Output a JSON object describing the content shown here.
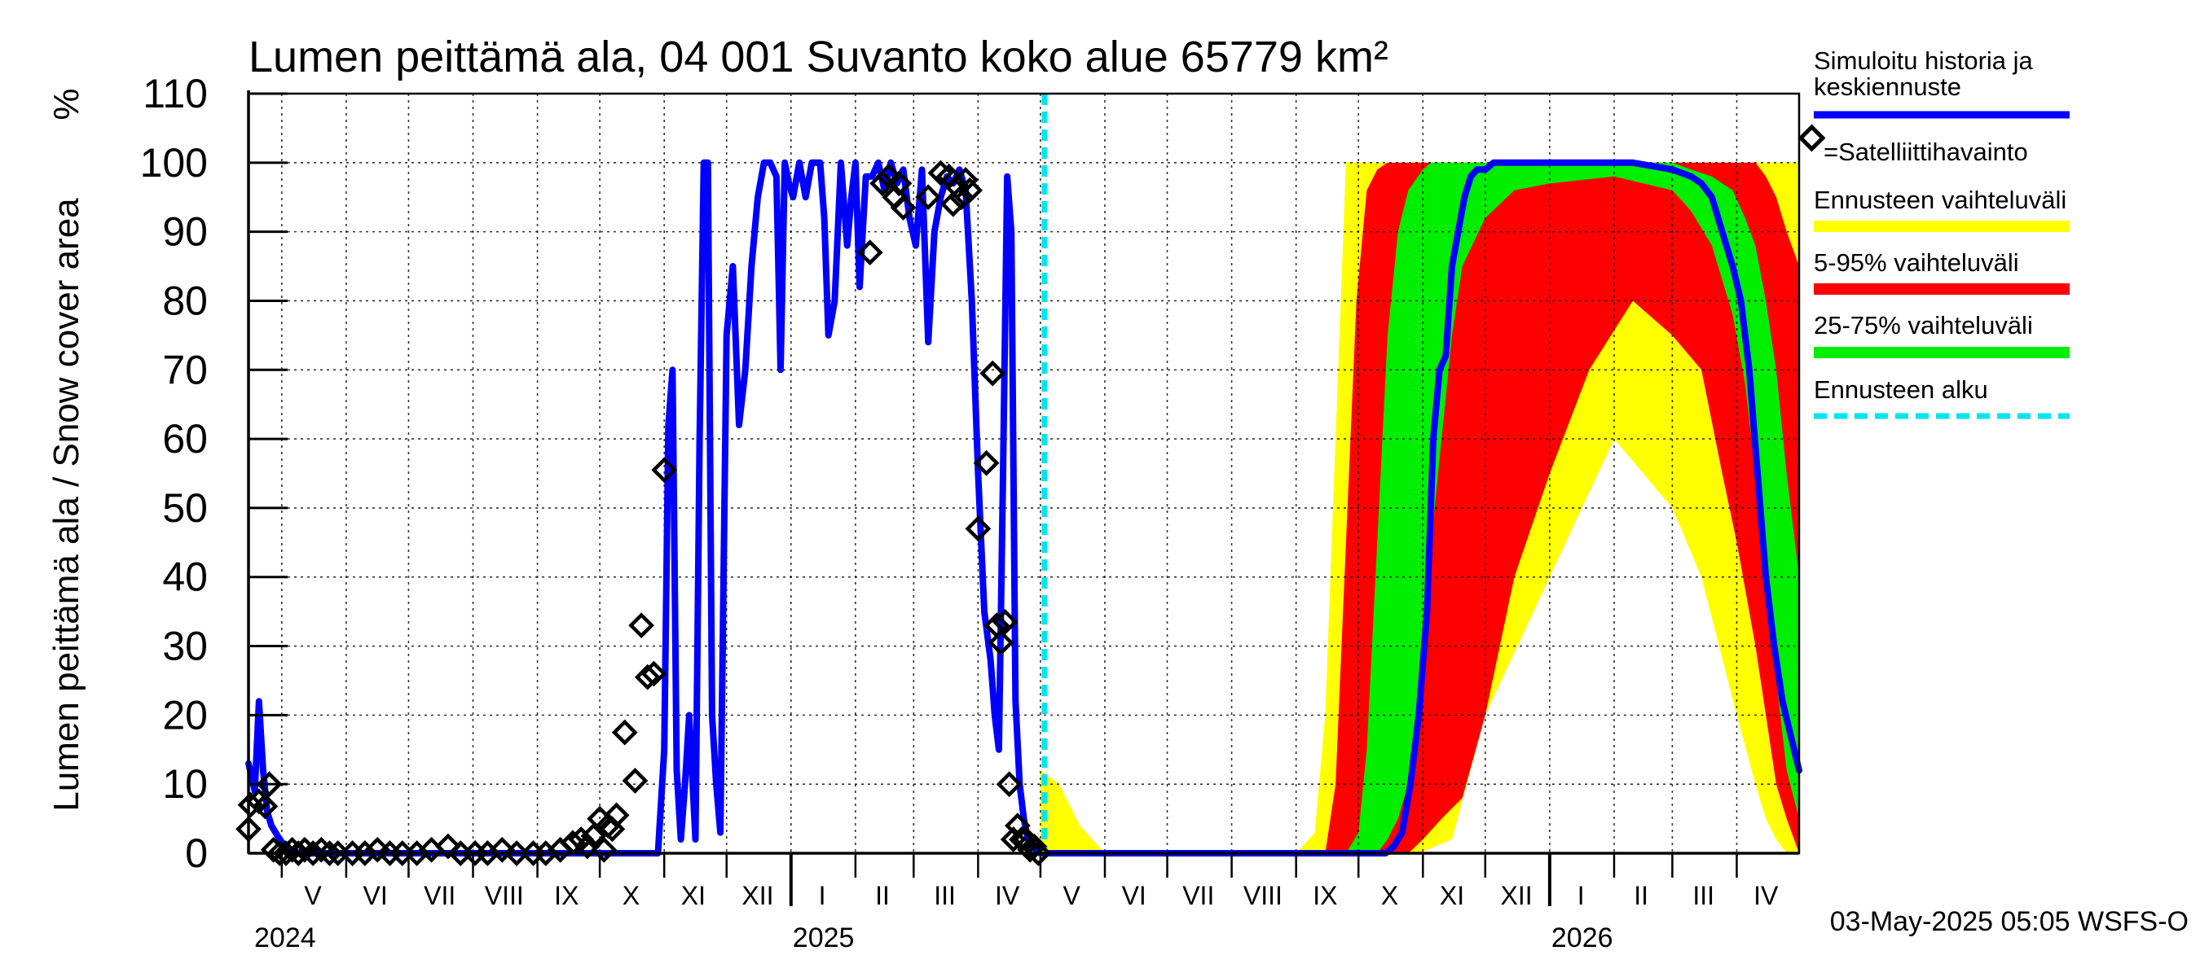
{
  "chart_data": {
    "type": "area",
    "title": "Lumen peittämä ala, 04 001 Suvanto koko alue 65779 km²",
    "ylabel": "Lumen peittämä ala / Snow cover area",
    "yunit": "%",
    "ylim": [
      0,
      110
    ],
    "yticks": [
      0,
      10,
      20,
      30,
      40,
      50,
      60,
      70,
      80,
      90,
      100,
      110
    ],
    "xlim": [
      "2024-04-15",
      "2026-05-01"
    ],
    "grid": true,
    "month_labels": [
      {
        "label": "V",
        "date": "2024-05-16"
      },
      {
        "label": "VI",
        "date": "2024-06-15"
      },
      {
        "label": "VII",
        "date": "2024-07-16"
      },
      {
        "label": "VIII",
        "date": "2024-08-16"
      },
      {
        "label": "IX",
        "date": "2024-09-15"
      },
      {
        "label": "X",
        "date": "2024-10-16"
      },
      {
        "label": "XI",
        "date": "2024-11-15"
      },
      {
        "label": "XII",
        "date": "2024-12-16"
      },
      {
        "label": "I",
        "date": "2025-01-16"
      },
      {
        "label": "II",
        "date": "2025-02-14"
      },
      {
        "label": "III",
        "date": "2025-03-16"
      },
      {
        "label": "IV",
        "date": "2025-04-15"
      },
      {
        "label": "V",
        "date": "2025-05-16"
      },
      {
        "label": "VI",
        "date": "2025-06-15"
      },
      {
        "label": "VII",
        "date": "2025-07-16"
      },
      {
        "label": "VIII",
        "date": "2025-08-16"
      },
      {
        "label": "IX",
        "date": "2025-09-15"
      },
      {
        "label": "X",
        "date": "2025-10-16"
      },
      {
        "label": "XI",
        "date": "2025-11-15"
      },
      {
        "label": "XII",
        "date": "2025-12-16"
      },
      {
        "label": "I",
        "date": "2026-01-16"
      },
      {
        "label": "II",
        "date": "2026-02-14"
      },
      {
        "label": "III",
        "date": "2026-03-16"
      },
      {
        "label": "IV",
        "date": "2026-04-15"
      }
    ],
    "year_labels": [
      {
        "label": "2024",
        "date": "2024-04-15"
      },
      {
        "label": "2025",
        "date": "2025-01-01"
      },
      {
        "label": "2026",
        "date": "2026-01-01"
      }
    ],
    "forecast_start": "2025-05-03",
    "legend": {
      "placement": "right",
      "entries": [
        {
          "label": "Simuloitu historia ja keskiennuste",
          "lines": [
            "Simuloitu historia ja",
            "keskiennuste"
          ],
          "color": "#0000ff",
          "style": "line"
        },
        {
          "label": "=Satelliittihavainto",
          "color": "#000000",
          "style": "diamond"
        },
        {
          "label": "Ennusteen vaihteluväli",
          "color": "#ffff00",
          "style": "band"
        },
        {
          "label": "5-95% vaihteluväli",
          "color": "#ff0000",
          "style": "band"
        },
        {
          "label": "25-75% vaihteluväli",
          "color": "#00ee00",
          "style": "band"
        },
        {
          "label": "Ennusteen alku",
          "color": "#00e5ee",
          "style": "dashed"
        }
      ]
    },
    "footer": "03-May-2025 05:05 WSFS-O",
    "series": [
      {
        "name": "Simuloitu historia ja keskiennuste",
        "color": "#0000ff",
        "x": [
          "2024-04-15",
          "2024-04-18",
          "2024-04-20",
          "2024-04-22",
          "2024-04-24",
          "2024-04-26",
          "2024-04-30",
          "2024-05-04",
          "2024-05-10",
          "2024-05-20",
          "2024-06-15",
          "2024-07-15",
          "2024-08-15",
          "2024-09-15",
          "2024-10-10",
          "2024-10-25",
          "2024-10-29",
          "2024-11-01",
          "2024-11-03",
          "2024-11-05",
          "2024-11-07",
          "2024-11-09",
          "2024-11-11",
          "2024-11-13",
          "2024-11-16",
          "2024-11-18",
          "2024-11-20",
          "2024-11-22",
          "2024-11-24",
          "2024-11-26",
          "2024-11-28",
          "2024-12-01",
          "2024-12-04",
          "2024-12-07",
          "2024-12-10",
          "2024-12-13",
          "2024-12-16",
          "2024-12-19",
          "2024-12-22",
          "2024-12-25",
          "2024-12-27",
          "2024-12-29",
          "2024-12-31",
          "2025-01-02",
          "2025-01-05",
          "2025-01-08",
          "2025-01-11",
          "2025-01-13",
          "2025-01-15",
          "2025-01-17",
          "2025-01-19",
          "2025-01-22",
          "2025-01-25",
          "2025-01-28",
          "2025-01-30",
          "2025-02-01",
          "2025-02-03",
          "2025-02-06",
          "2025-02-09",
          "2025-02-12",
          "2025-02-15",
          "2025-02-18",
          "2025-02-21",
          "2025-02-24",
          "2025-02-27",
          "2025-03-02",
          "2025-03-05",
          "2025-03-08",
          "2025-03-11",
          "2025-03-14",
          "2025-03-17",
          "2025-03-20",
          "2025-03-23",
          "2025-03-26",
          "2025-03-29",
          "2025-04-01",
          "2025-04-04",
          "2025-04-07",
          "2025-04-09",
          "2025-04-11",
          "2025-04-13",
          "2025-04-15",
          "2025-04-17",
          "2025-04-19",
          "2025-04-21",
          "2025-04-23",
          "2025-04-25",
          "2025-04-27",
          "2025-04-29",
          "2025-05-01",
          "2025-05-03",
          "2025-06-01",
          "2025-09-01",
          "2025-10-01",
          "2025-10-10",
          "2025-10-14",
          "2025-10-18",
          "2025-10-22",
          "2025-10-26",
          "2025-10-30",
          "2025-11-03",
          "2025-11-06",
          "2025-11-09",
          "2025-11-12",
          "2025-11-15",
          "2025-11-18",
          "2025-11-21",
          "2025-11-24",
          "2025-11-27",
          "2025-12-01",
          "2025-12-05",
          "2025-12-10",
          "2025-12-15",
          "2025-12-20",
          "2026-01-01",
          "2026-01-20",
          "2026-02-10",
          "2026-03-01",
          "2026-03-10",
          "2026-03-15",
          "2026-03-20",
          "2026-03-25",
          "2026-03-30",
          "2026-04-03",
          "2026-04-07",
          "2026-04-11",
          "2026-04-15",
          "2026-04-19",
          "2026-04-23",
          "2026-04-27",
          "2026-05-01"
        ],
        "y": [
          13,
          9,
          22,
          12,
          6,
          4,
          2,
          0.5,
          0,
          0,
          0,
          0,
          0,
          0,
          0,
          0,
          0,
          15,
          62,
          70,
          12,
          2,
          10,
          20,
          2,
          60,
          100,
          100,
          20,
          10,
          3,
          75,
          85,
          62,
          70,
          85,
          95,
          100,
          100,
          98,
          70,
          100,
          97,
          95,
          100,
          95,
          100,
          100,
          100,
          92,
          75,
          80,
          100,
          88,
          95,
          100,
          82,
          98,
          98,
          100,
          96,
          100,
          97,
          99,
          92,
          88,
          99,
          74,
          90,
          95,
          98,
          97,
          99,
          96,
          80,
          55,
          35,
          28,
          20,
          15,
          55,
          98,
          90,
          22,
          10,
          5,
          2,
          1,
          0.5,
          0,
          0,
          0,
          0,
          0,
          0,
          0,
          1,
          3,
          10,
          20,
          35,
          60,
          70,
          72,
          85,
          90,
          95,
          98,
          99,
          99,
          100,
          100,
          100,
          100,
          100,
          100,
          100,
          99,
          98,
          97,
          95,
          90,
          85,
          80,
          70,
          55,
          40,
          30,
          22,
          17,
          12
        ]
      }
    ],
    "bands": [
      {
        "name": "Ennusteen vaihteluväli",
        "color": "#ffff00",
        "x": [
          "2025-05-01",
          "2025-05-10",
          "2025-05-20",
          "2025-06-01",
          "2025-09-01",
          "2025-09-10",
          "2025-09-15",
          "2025-09-20",
          "2025-09-25",
          "2025-10-01",
          "2025-10-05",
          "2025-10-10",
          "2025-10-15",
          "2025-10-20",
          "2025-10-30",
          "2025-11-15",
          "2025-12-01",
          "2026-01-01",
          "2026-02-01",
          "2026-03-01",
          "2026-03-15",
          "2026-04-01",
          "2026-04-10",
          "2026-04-15",
          "2026-04-20",
          "2026-04-25",
          "2026-05-01"
        ],
        "upper": [
          12,
          10,
          4,
          0,
          0,
          3,
          20,
          60,
          100,
          100,
          100,
          100,
          100,
          100,
          100,
          100,
          100,
          100,
          100,
          100,
          100,
          100,
          100,
          100,
          100,
          100,
          100
        ],
        "lower": [
          0,
          0,
          0,
          0,
          0,
          0,
          0,
          0,
          0,
          0,
          0,
          0,
          0,
          0,
          0,
          2,
          20,
          40,
          60,
          50,
          40,
          20,
          10,
          5,
          2,
          0,
          0
        ]
      },
      {
        "name": "5-95% vaihteluväli",
        "color": "#ff0000",
        "x": [
          "2025-09-15",
          "2025-09-20",
          "2025-09-25",
          "2025-09-30",
          "2025-10-05",
          "2025-10-10",
          "2025-10-15",
          "2025-10-20",
          "2025-10-25",
          "2025-11-01",
          "2025-11-10",
          "2025-11-20",
          "2025-12-01",
          "2025-12-15",
          "2026-01-01",
          "2026-01-20",
          "2026-02-10",
          "2026-03-01",
          "2026-03-15",
          "2026-03-25",
          "2026-04-01",
          "2026-04-10",
          "2026-04-15",
          "2026-04-20",
          "2026-04-25",
          "2026-05-01"
        ],
        "upper": [
          0,
          10,
          45,
          80,
          96,
          99,
          100,
          100,
          100,
          100,
          100,
          100,
          100,
          100,
          100,
          100,
          100,
          100,
          100,
          100,
          100,
          100,
          98,
          95,
          90,
          85
        ],
        "lower": [
          0,
          0,
          0,
          0,
          0,
          0,
          0,
          0,
          0,
          2,
          5,
          8,
          20,
          40,
          55,
          70,
          80,
          75,
          70,
          55,
          45,
          30,
          20,
          10,
          5,
          0
        ]
      },
      {
        "name": "25-75% vaihteluväli",
        "color": "#00ee00",
        "x": [
          "2025-09-25",
          "2025-10-01",
          "2025-10-05",
          "2025-10-10",
          "2025-10-15",
          "2025-10-20",
          "2025-10-25",
          "2025-11-01",
          "2025-11-05",
          "2025-11-10",
          "2025-11-15",
          "2025-11-20",
          "2025-12-01",
          "2025-12-15",
          "2026-01-01",
          "2026-02-01",
          "2026-03-01",
          "2026-03-10",
          "2026-03-20",
          "2026-03-30",
          "2026-04-05",
          "2026-04-10",
          "2026-04-15",
          "2026-04-20",
          "2026-04-25",
          "2026-05-01"
        ],
        "upper": [
          0,
          3,
          15,
          45,
          75,
          90,
          96,
          99,
          100,
          100,
          100,
          100,
          100,
          100,
          100,
          100,
          100,
          99,
          98,
          96,
          92,
          88,
          80,
          70,
          55,
          40
        ],
        "lower": [
          0,
          0,
          0,
          0,
          2,
          5,
          10,
          25,
          45,
          60,
          75,
          85,
          92,
          96,
          97,
          98,
          96,
          93,
          88,
          78,
          68,
          55,
          40,
          25,
          12,
          5
        ]
      }
    ],
    "observations": {
      "name": "=Satelliittihavainto",
      "x": [
        "2024-04-15",
        "2024-04-16",
        "2024-04-20",
        "2024-04-23",
        "2024-04-25",
        "2024-04-27",
        "2024-04-30",
        "2024-05-03",
        "2024-05-06",
        "2024-05-09",
        "2024-05-12",
        "2024-05-16",
        "2024-05-20",
        "2024-05-24",
        "2024-05-28",
        "2024-06-04",
        "2024-06-10",
        "2024-06-16",
        "2024-06-22",
        "2024-06-28",
        "2024-07-05",
        "2024-07-12",
        "2024-07-20",
        "2024-07-26",
        "2024-08-02",
        "2024-08-08",
        "2024-08-15",
        "2024-08-22",
        "2024-08-30",
        "2024-09-05",
        "2024-09-12",
        "2024-09-18",
        "2024-09-22",
        "2024-09-25",
        "2024-09-28",
        "2024-10-01",
        "2024-10-03",
        "2024-10-05",
        "2024-10-07",
        "2024-10-09",
        "2024-10-13",
        "2024-10-18",
        "2024-10-21",
        "2024-10-24",
        "2024-10-27",
        "2024-11-01",
        "2025-02-08",
        "2025-02-14",
        "2025-02-17",
        "2025-02-20",
        "2025-02-22",
        "2025-02-24",
        "2025-03-08",
        "2025-03-14",
        "2025-03-18",
        "2025-03-20",
        "2025-03-22",
        "2025-03-24",
        "2025-03-26",
        "2025-03-28",
        "2025-04-01",
        "2025-04-05",
        "2025-04-08",
        "2025-04-10",
        "2025-04-12",
        "2025-04-14",
        "2025-04-16",
        "2025-04-18",
        "2025-04-20",
        "2025-04-22",
        "2025-04-24",
        "2025-04-26",
        "2025-04-28",
        "2025-04-30"
      ],
      "y": [
        3.5,
        7,
        7.5,
        6.8,
        10,
        0.5,
        0,
        0,
        0.5,
        0,
        0.5,
        0,
        0.5,
        0,
        0,
        0,
        0,
        0.5,
        0,
        0,
        0,
        0.5,
        1,
        0,
        0,
        0,
        0.5,
        0,
        0,
        0,
        0.5,
        1.5,
        2,
        1,
        2.5,
        5,
        0.5,
        4,
        3.5,
        5.5,
        17.5,
        10.5,
        33,
        25.5,
        26,
        55.5,
        87,
        97,
        98,
        95,
        97,
        93.5,
        95,
        98.5,
        98,
        94,
        96.5,
        95,
        97.5,
        96,
        47,
        56.5,
        69.5,
        33,
        30.5,
        33.5,
        10,
        2,
        4,
        2,
        2,
        0.5,
        1,
        0
      ]
    }
  }
}
